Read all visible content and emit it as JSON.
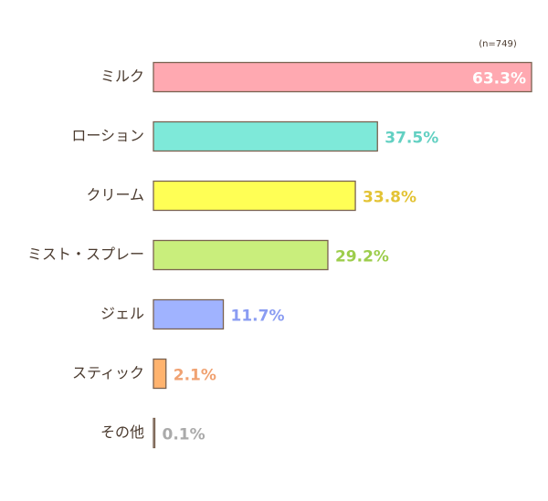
{
  "chart_data": {
    "type": "bar",
    "orientation": "horizontal",
    "note": "(n=749)",
    "categories": [
      "ミルク",
      "ローション",
      "クリーム",
      "ミスト・スプレー",
      "ジェル",
      "スティック",
      "その他"
    ],
    "values": [
      63.3,
      37.5,
      33.8,
      29.2,
      11.7,
      2.1,
      0.1
    ],
    "value_labels": [
      "63.3%",
      "37.5%",
      "33.8%",
      "29.2%",
      "11.7%",
      "2.1%",
      "0.1%"
    ],
    "colors": [
      "#ffa9b1",
      "#7ee9d9",
      "#ffff55",
      "#c9ee7c",
      "#a0b3ff",
      "#ffb36e",
      "#c8c8c8"
    ],
    "label_colors": [
      "#ffffff",
      "#62d0c2",
      "#e3c335",
      "#9dcd4c",
      "#8a9cf2",
      "#f0a272",
      "#aaaaaa"
    ]
  }
}
